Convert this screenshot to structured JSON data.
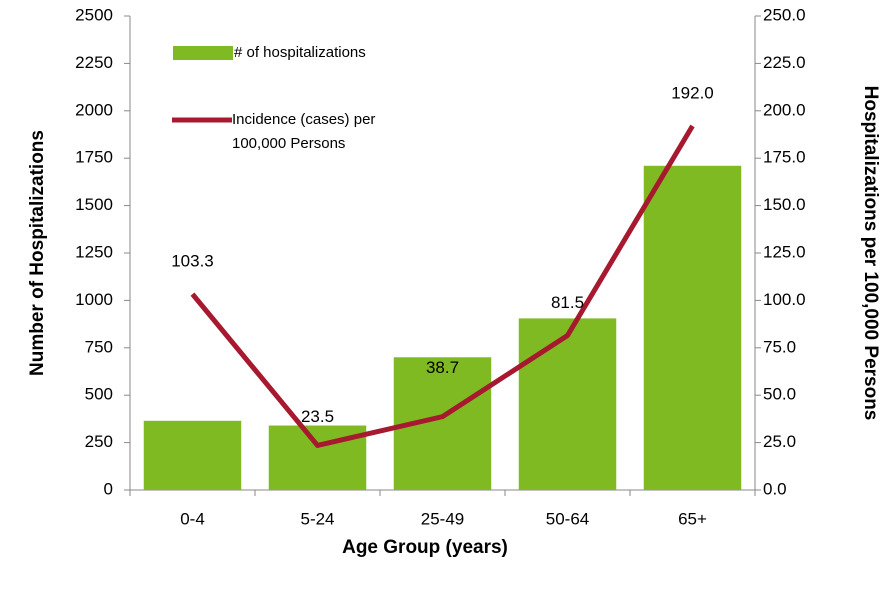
{
  "chart_data": {
    "type": "combo",
    "x_label": "Age Group (years)",
    "y_label": "Number of Hospitalizations",
    "y2_label": "Hospitalizations per 100,000 Persons",
    "categories": [
      "0-4",
      "5-24",
      "25-49",
      "50-64",
      "65+"
    ],
    "series": [
      {
        "name": "# of hospitalizations",
        "type": "bar",
        "color": "#7fba23",
        "values": [
          365,
          340,
          700,
          905,
          1710
        ]
      },
      {
        "name": "Incidence (cases) per 100,000 Persons",
        "type": "line",
        "axis": "y2",
        "color": "#a6192e",
        "values": [
          103.3,
          23.5,
          38.7,
          81.5,
          192.0
        ],
        "value_labels": [
          "103.3",
          "23.5",
          "38.7",
          "81.5",
          "192.0"
        ]
      }
    ],
    "ylim": [
      0,
      2500
    ],
    "yticks": [
      0,
      250,
      500,
      750,
      1000,
      1250,
      1500,
      1750,
      2000,
      2250,
      2500
    ],
    "y2lim": [
      0,
      250
    ],
    "y2ticks": [
      {
        "value": 0,
        "label": "0.0"
      },
      {
        "value": 25,
        "label": "25.0"
      },
      {
        "value": 50,
        "label": "50.0"
      },
      {
        "value": 75,
        "label": "75.0"
      },
      {
        "value": 100,
        "label": "100.0"
      },
      {
        "value": 125,
        "label": "125.0"
      },
      {
        "value": 150,
        "label": "150.0"
      },
      {
        "value": 175,
        "label": "175.0"
      },
      {
        "value": 200,
        "label": "200.0"
      },
      {
        "value": 225,
        "label": "225.0"
      },
      {
        "value": 250,
        "label": "250.0"
      }
    ],
    "legend": "top-left"
  }
}
